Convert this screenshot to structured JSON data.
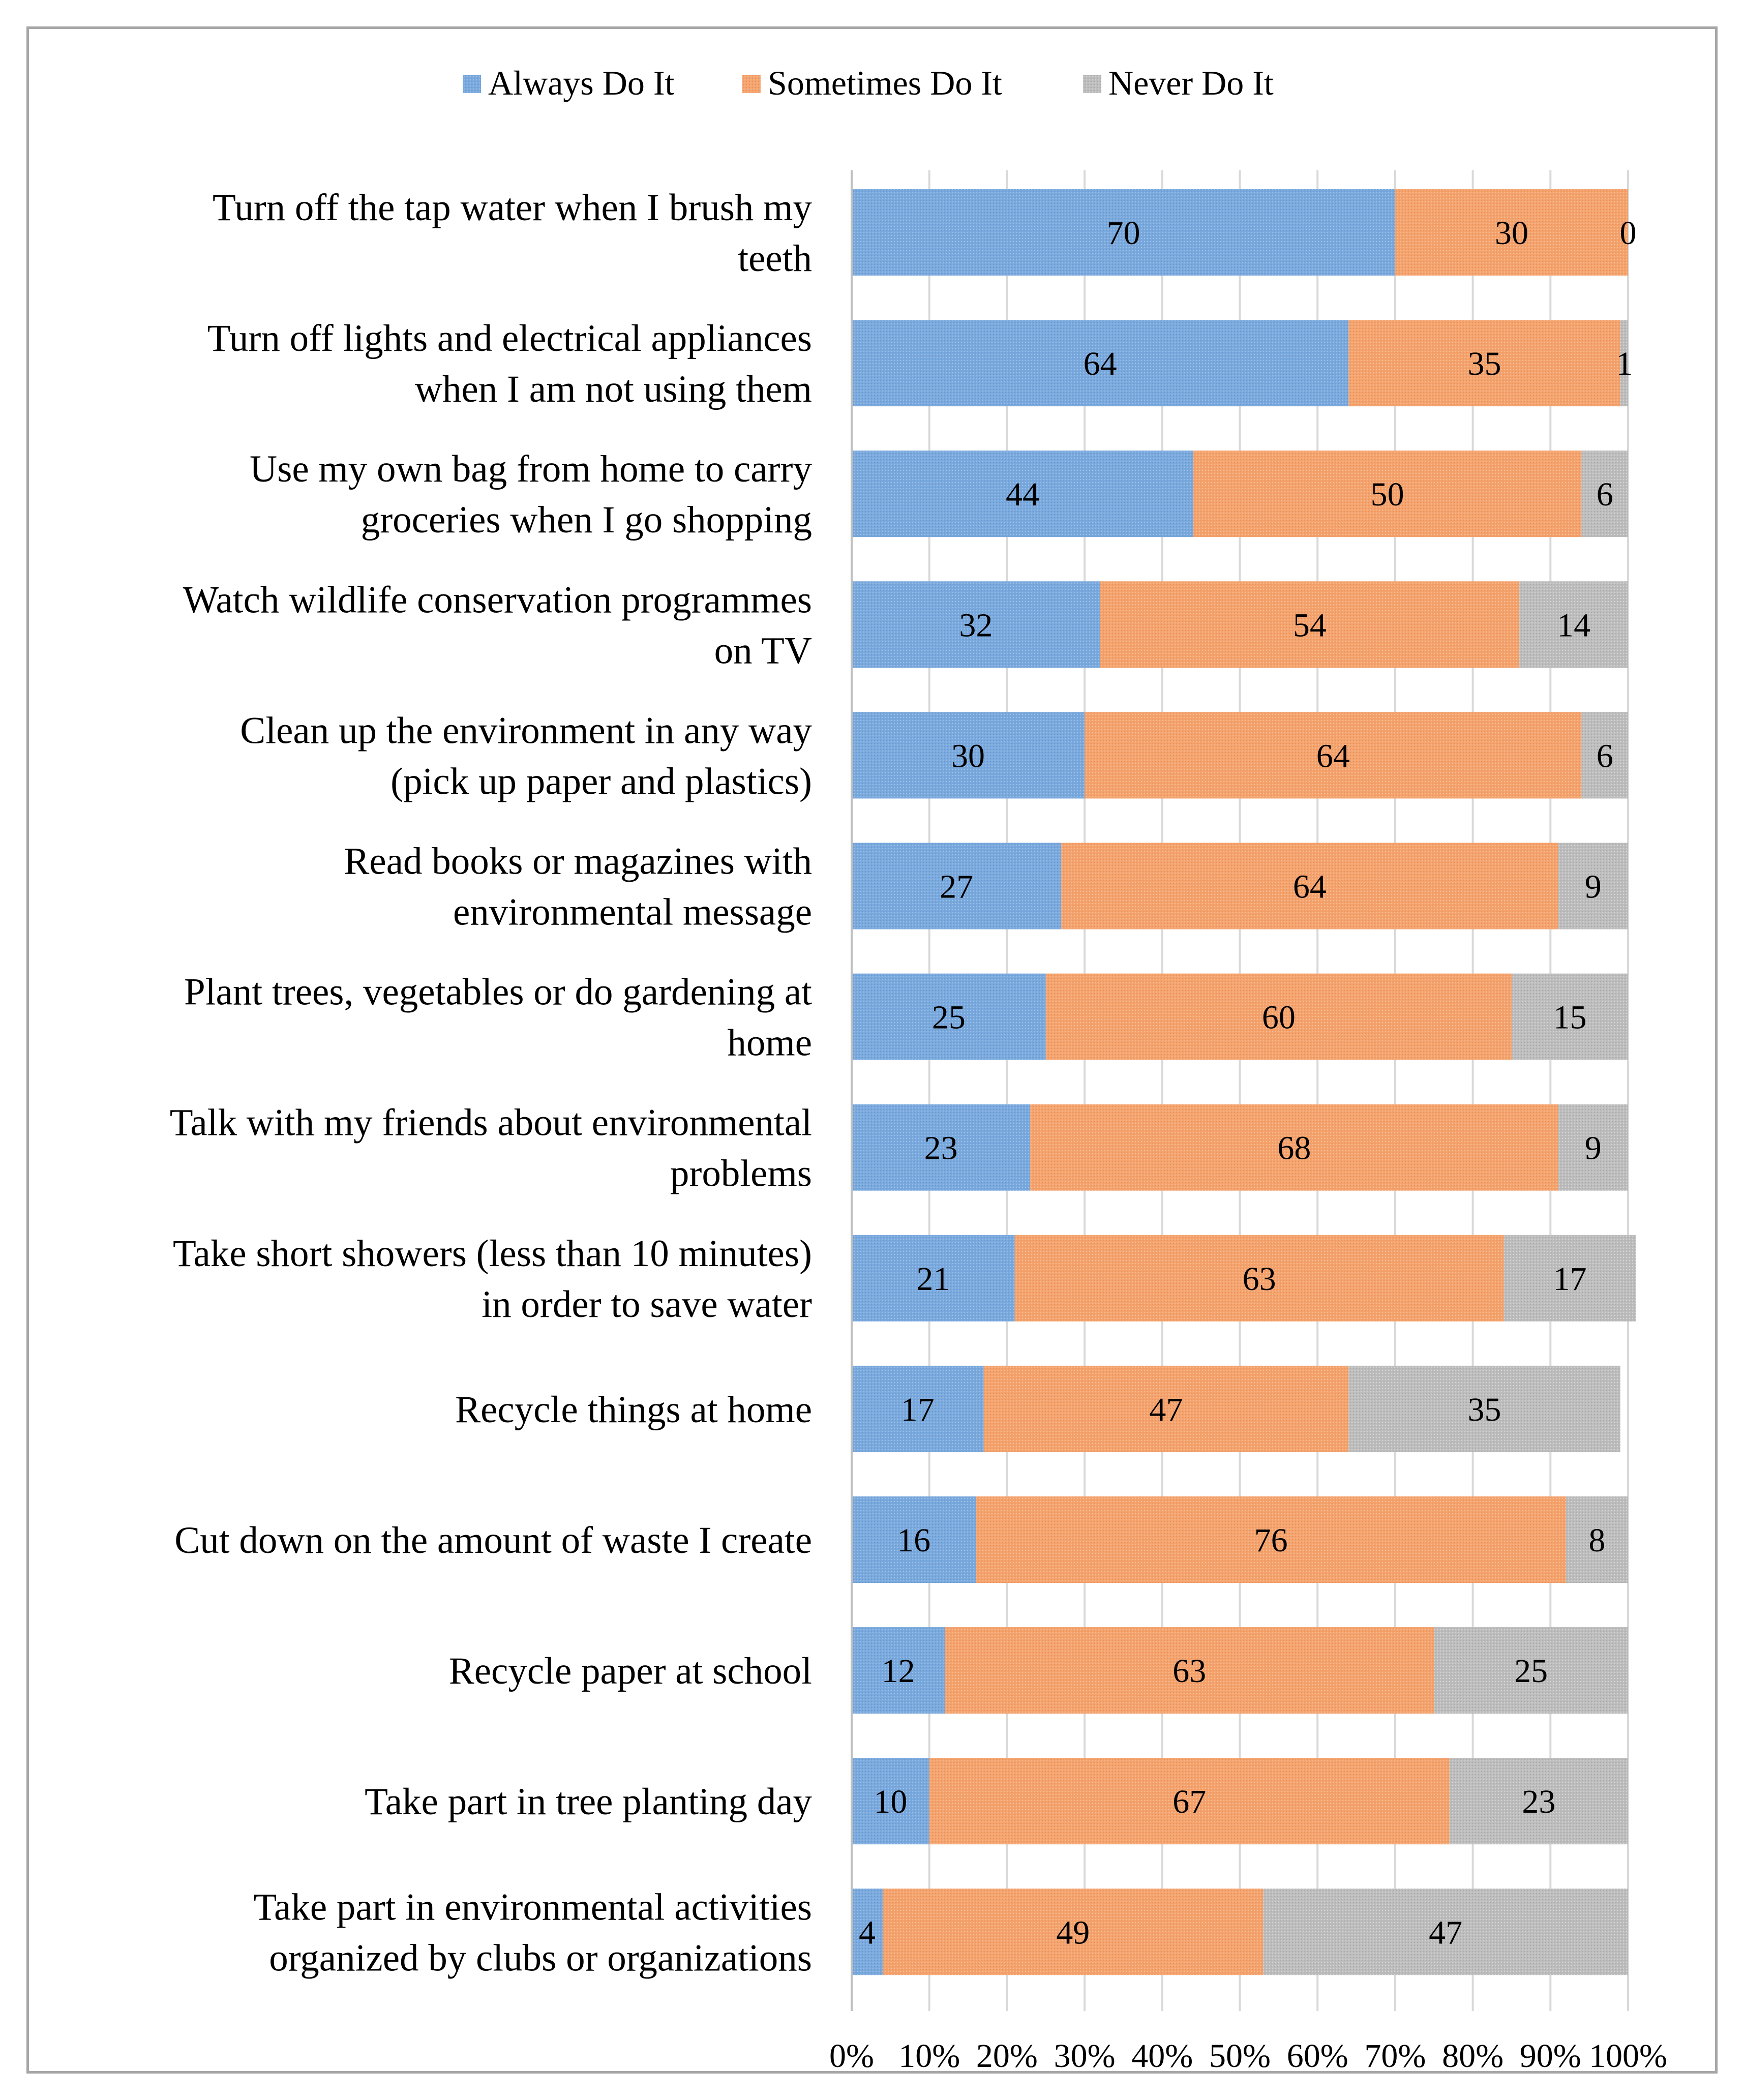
{
  "chart_data": {
    "type": "bar",
    "orientation": "horizontal",
    "stacked": "percent",
    "title": "",
    "xlabel": "",
    "ylabel": "",
    "xlim": [
      0,
      100
    ],
    "x_ticks": [
      "0%",
      "10%",
      "20%",
      "30%",
      "40%",
      "50%",
      "60%",
      "70%",
      "80%",
      "90%",
      "100%"
    ],
    "grid": "vertical",
    "legend_position": "top",
    "categories": [
      [
        "Turn off the tap water when I brush my",
        "teeth"
      ],
      [
        "Turn off lights and electrical appliances",
        "when I am not using them"
      ],
      [
        "Use my own bag from home to carry",
        "groceries when I go shopping"
      ],
      [
        "Watch wildlife conservation programmes",
        "on TV"
      ],
      [
        "Clean up the environment in any way",
        "(pick up paper and plastics)"
      ],
      [
        "Read books or magazines with",
        "environmental message"
      ],
      [
        "Plant trees, vegetables or do gardening at",
        "home"
      ],
      [
        "Talk with my friends about environmental",
        "problems"
      ],
      [
        "Take short showers (less than 10 minutes)",
        "in order to save water"
      ],
      [
        "Recycle things at home"
      ],
      [
        "Cut down on the amount of waste I create"
      ],
      [
        "Recycle paper at school"
      ],
      [
        "Take part in tree planting day"
      ],
      [
        "Take part in environmental activities",
        "organized by clubs or organizations"
      ]
    ],
    "series": [
      {
        "name": "Always Do It",
        "color": "#7aa9dd",
        "values": [
          70,
          64,
          44,
          32,
          30,
          27,
          25,
          23,
          21,
          17,
          16,
          12,
          10,
          4
        ]
      },
      {
        "name": "Sometimes Do It",
        "color": "#f4a36e",
        "values": [
          30,
          35,
          50,
          54,
          64,
          64,
          60,
          68,
          63,
          47,
          76,
          63,
          67,
          49
        ]
      },
      {
        "name": "Never Do It",
        "color": "#bdbdbd",
        "values": [
          0,
          1,
          6,
          14,
          6,
          9,
          15,
          9,
          17,
          35,
          8,
          25,
          23,
          47
        ]
      }
    ]
  }
}
